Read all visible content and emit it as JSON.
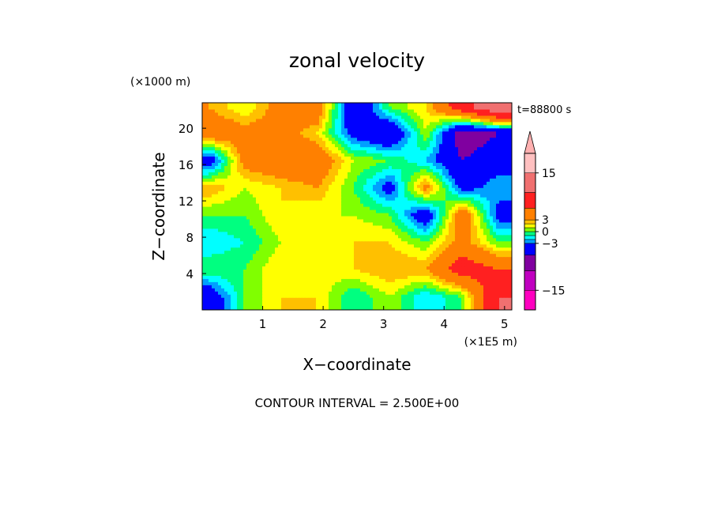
{
  "chart_data": {
    "type": "heatmap",
    "title": "zonal velocity",
    "time_label": "t=88800 s",
    "xlabel": "X−coordinate",
    "ylabel": "Z−coordinate",
    "x_unit": "(×1E5 m)",
    "y_unit": "(×1000 m)",
    "xlim": [
      0,
      5.12
    ],
    "ylim": [
      0,
      22.8
    ],
    "x_ticks": [
      1,
      2,
      3,
      4,
      5
    ],
    "y_ticks": [
      4,
      8,
      12,
      16,
      20
    ],
    "footer": "CONTOUR INTERVAL = 2.500E+00",
    "colorbar": {
      "range": [
        -20,
        20
      ],
      "tick_values": [
        15,
        3,
        0,
        -3,
        -15
      ],
      "tick_labels": [
        "15",
        "3",
        "0",
        "−3",
        "−15"
      ],
      "levels": [
        {
          "from": -20,
          "to": -15,
          "color": "#ff00c0"
        },
        {
          "from": -15,
          "to": -10,
          "color": "#c000c0"
        },
        {
          "from": -10,
          "to": -6,
          "color": "#8000a0"
        },
        {
          "from": -6,
          "to": -3,
          "color": "#0000ff"
        },
        {
          "from": -3,
          "to": -2,
          "color": "#00a0ff"
        },
        {
          "from": -2,
          "to": -1,
          "color": "#00ffff"
        },
        {
          "from": -1,
          "to": 0,
          "color": "#00ff80"
        },
        {
          "from": 0,
          "to": 1,
          "color": "#80ff00"
        },
        {
          "from": 1,
          "to": 2,
          "color": "#ffff00"
        },
        {
          "from": 2,
          "to": 3,
          "color": "#ffc000"
        },
        {
          "from": 3,
          "to": 6,
          "color": "#ff8000"
        },
        {
          "from": 6,
          "to": 10,
          "color": "#ff2020"
        },
        {
          "from": 10,
          "to": 15,
          "color": "#f07070"
        },
        {
          "from": 15,
          "to": 20,
          "color": "#ffc0c0"
        }
      ],
      "overflow_color": "#ffb0b0"
    },
    "grid_x": [
      0.1,
      0.7,
      1.3,
      1.9,
      2.5,
      3.1,
      3.7,
      4.3,
      4.9
    ],
    "grid_y": [
      1.5,
      4.5,
      7.5,
      10.5,
      13.5,
      16.5,
      19.5,
      22.3
    ],
    "values_by_z": [
      [
        -5,
        0,
        2,
        2,
        -1,
        1,
        -2,
        0,
        10
      ],
      [
        0,
        0,
        2,
        1,
        2,
        3,
        3,
        8,
        6
      ],
      [
        -2,
        -1,
        1,
        1,
        2,
        2,
        0,
        4,
        0
      ],
      [
        0,
        0,
        2,
        1,
        1,
        0,
        -5,
        5,
        -4
      ],
      [
        3,
        1,
        2,
        3,
        0,
        -4,
        4,
        -4,
        -2
      ],
      [
        -5,
        4,
        5,
        5,
        1,
        0,
        -2,
        -6,
        -4
      ],
      [
        5,
        4,
        4,
        2,
        -4,
        -6,
        1,
        -8,
        -6
      ],
      [
        3,
        1,
        4,
        5,
        -6,
        0,
        2,
        8,
        14
      ]
    ]
  }
}
